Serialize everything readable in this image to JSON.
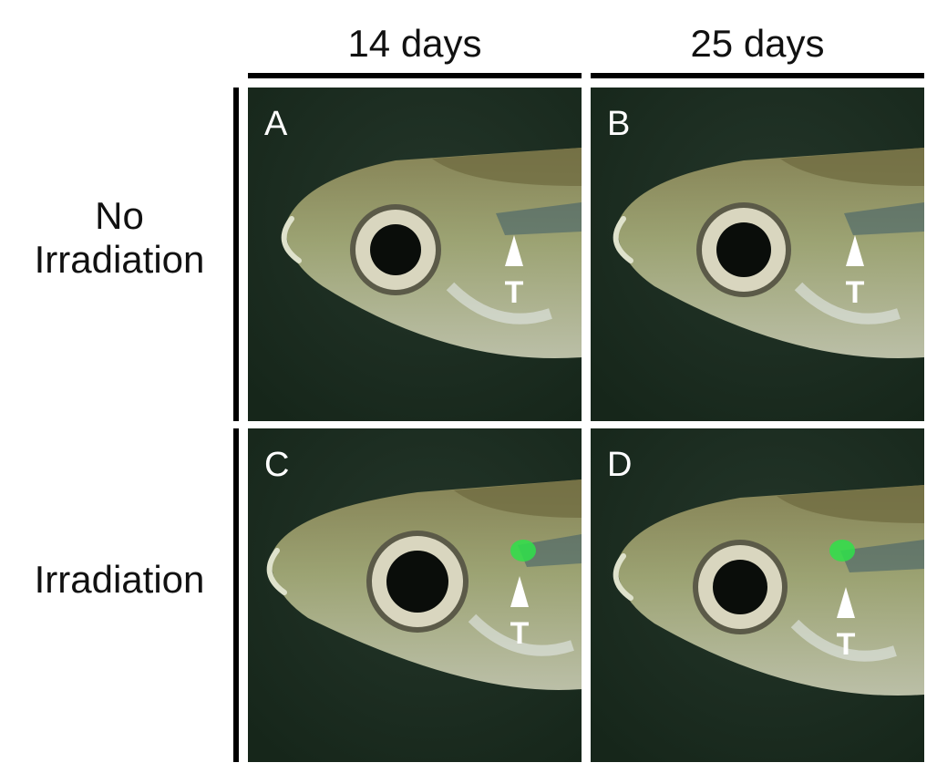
{
  "columns": [
    "14 days",
    "25 days"
  ],
  "rows": [
    "No Irradiation",
    "Irradiation"
  ],
  "row_label_lines": [
    [
      "No",
      "Irradiation"
    ],
    [
      "Irradiation"
    ]
  ],
  "panels": [
    {
      "letter": "A",
      "green_spot": false
    },
    {
      "letter": "B",
      "green_spot": false
    },
    {
      "letter": "C",
      "green_spot": true
    },
    {
      "letter": "D",
      "green_spot": true
    }
  ],
  "marker_symbol": "T",
  "colors": {
    "background": "#ffffff",
    "rule": "#000000",
    "water": "#16261a",
    "fish_body": "#a7ad7a",
    "eye_ring": "#d9d6bf",
    "pupil": "#0a0d0a",
    "fluorescence": "#2fe04a",
    "annotation": "#ffffff"
  }
}
